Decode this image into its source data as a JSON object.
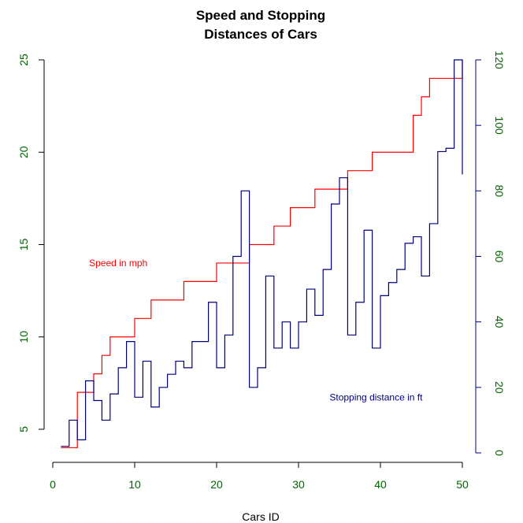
{
  "chart_data": {
    "type": "line",
    "step": true,
    "title_lines": [
      "Speed and Stopping",
      "Distances of Cars"
    ],
    "xlabel": "Cars ID",
    "ylabel": "",
    "ylabel_right": "",
    "xlim": [
      0,
      50
    ],
    "ylim": [
      4,
      25
    ],
    "ylim_right": [
      0,
      120
    ],
    "xticks": [
      0,
      10,
      20,
      30,
      40,
      50
    ],
    "yticks": [
      5,
      10,
      15,
      20,
      25
    ],
    "yticks_right": [
      0,
      20,
      40,
      60,
      80,
      100,
      120
    ],
    "grid": false,
    "legend": "none",
    "colors": {
      "speed": "#ff0000",
      "distance": "#000080",
      "ticks": "#006400",
      "axis": "#000000"
    },
    "annotations": [
      {
        "text": "Speed in mph",
        "x": 8,
        "y": 14,
        "axis": "left",
        "series": "speed"
      },
      {
        "text": "Stopping distance in ft",
        "x": 36,
        "y": 17,
        "axis": "right",
        "series": "distance"
      }
    ],
    "x": [
      1,
      2,
      3,
      4,
      5,
      6,
      7,
      8,
      9,
      10,
      11,
      12,
      13,
      14,
      15,
      16,
      17,
      18,
      19,
      20,
      21,
      22,
      23,
      24,
      25,
      26,
      27,
      28,
      29,
      30,
      31,
      32,
      33,
      34,
      35,
      36,
      37,
      38,
      39,
      40,
      41,
      42,
      43,
      44,
      45,
      46,
      47,
      48,
      49,
      50
    ],
    "series": [
      {
        "name": "Speed in mph",
        "axis": "left",
        "values": [
          4,
          4,
          7,
          7,
          8,
          9,
          10,
          10,
          10,
          11,
          11,
          12,
          12,
          12,
          12,
          13,
          13,
          13,
          13,
          14,
          14,
          14,
          14,
          15,
          15,
          15,
          16,
          16,
          17,
          17,
          17,
          18,
          18,
          18,
          18,
          19,
          19,
          19,
          20,
          20,
          20,
          20,
          20,
          22,
          23,
          24,
          24,
          24,
          24,
          25
        ]
      },
      {
        "name": "Stopping distance in ft",
        "axis": "right",
        "values": [
          2,
          10,
          4,
          22,
          16,
          10,
          18,
          26,
          34,
          17,
          28,
          14,
          20,
          24,
          28,
          26,
          34,
          34,
          46,
          26,
          36,
          60,
          80,
          20,
          26,
          54,
          32,
          40,
          32,
          40,
          50,
          42,
          56,
          76,
          84,
          36,
          46,
          68,
          32,
          48,
          52,
          56,
          64,
          66,
          54,
          70,
          92,
          93,
          120,
          85
        ]
      }
    ]
  }
}
